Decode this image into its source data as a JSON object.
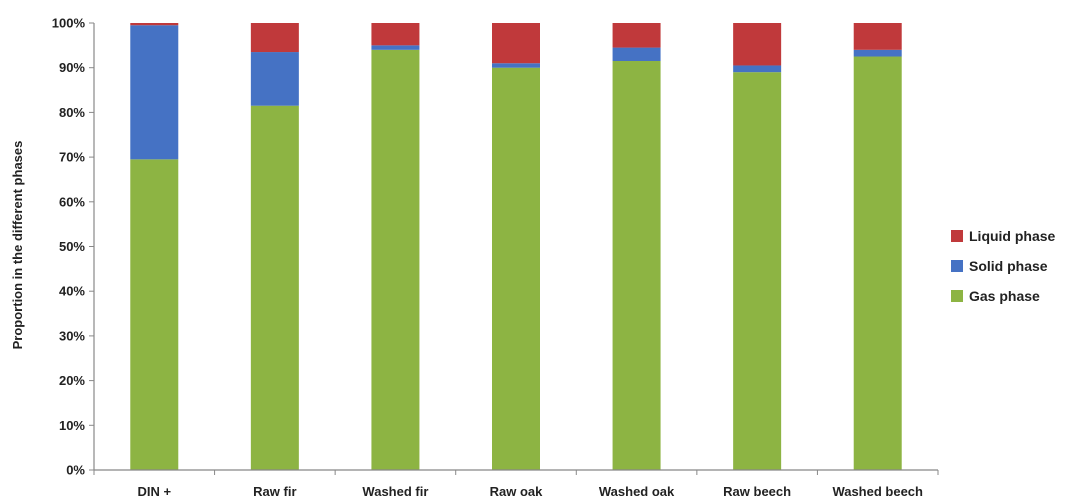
{
  "chart_data": {
    "type": "bar",
    "stacked": true,
    "categories": [
      "DIN +",
      "Raw fir",
      "Washed fir",
      "Raw oak",
      "Washed oak",
      "Raw beech",
      "Washed beech"
    ],
    "series": [
      {
        "name": "Gas phase",
        "color": "#8db443",
        "values": [
          69.5,
          81.5,
          94.0,
          90.0,
          91.5,
          89.0,
          92.5
        ]
      },
      {
        "name": "Solid phase",
        "color": "#4572c4",
        "values": [
          30.0,
          12.0,
          1.0,
          1.0,
          3.0,
          1.5,
          1.5
        ]
      },
      {
        "name": "Liquid phase",
        "color": "#c0393b",
        "values": [
          0.5,
          6.5,
          5.0,
          9.0,
          5.5,
          9.5,
          6.0
        ]
      }
    ],
    "ylabel": "Proportion in the different phases",
    "xlabel": "",
    "ylim": [
      0,
      100
    ],
    "yticks": [
      "0%",
      "10%",
      "20%",
      "30%",
      "40%",
      "50%",
      "60%",
      "70%",
      "80%",
      "90%",
      "100%"
    ],
    "legend_position": "right",
    "legend_order": [
      "Liquid phase",
      "Solid phase",
      "Gas phase"
    ],
    "grid": false
  }
}
